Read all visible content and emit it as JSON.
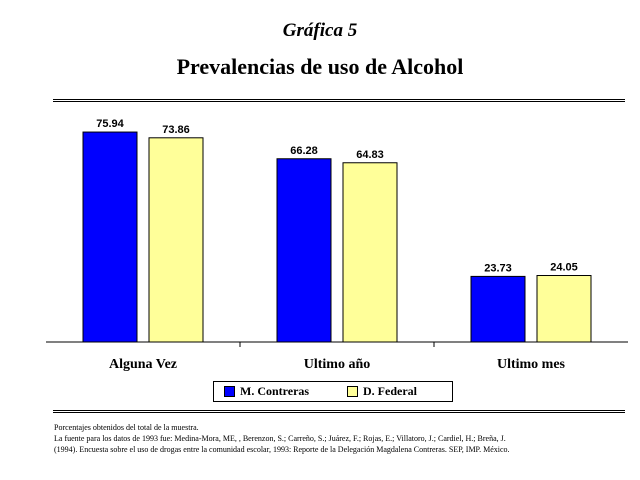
{
  "header": {
    "kicker": "Gráfica 5",
    "title": "Prevalencias de uso de Alcohol"
  },
  "chart_data": {
    "type": "bar",
    "categories": [
      "Alguna Vez",
      "Ultimo año",
      "Ultimo mes"
    ],
    "series": [
      {
        "name": "M. Contreras",
        "values": [
          75.94,
          66.28,
          23.73
        ],
        "color": "#0000ff"
      },
      {
        "name": "D. Federal",
        "values": [
          73.86,
          64.83,
          24.05
        ],
        "color": "#ffff99"
      }
    ],
    "title": "",
    "xlabel": "",
    "ylabel": "",
    "ylim": [
      0,
      85
    ],
    "grid": false,
    "legend": "bottom",
    "data_labels": true
  },
  "notes": {
    "line1": "Porcentajes obtenidos del total de la muestra.",
    "line2": "La fuente para los datos de 1993 fue: Medina-Mora, ME, , Berenzon, S.; Carreño, S.; Juárez, F.; Rojas, E.; Villatoro, J.; Cardiel, H.; Breña, J.",
    "line3": "(1994). Encuesta sobre el uso de drogas entre la comunidad escolar, 1993: Reporte de la Delegación Magdalena Contreras. SEP, IMP. México."
  }
}
